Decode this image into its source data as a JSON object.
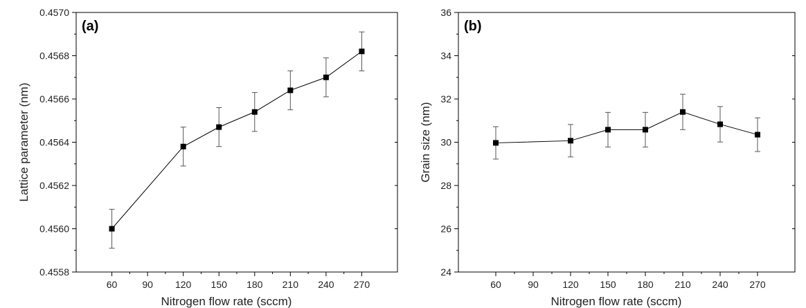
{
  "chart_data": [
    {
      "type": "line",
      "panel_label": "(a)",
      "xlabel": "Nitrogen flow rate (sccm)",
      "ylabel": "Lattice parameter (nm)",
      "xlim": [
        30,
        300
      ],
      "ylim": [
        0.4558,
        0.457
      ],
      "xticks": [
        60,
        90,
        120,
        150,
        180,
        210,
        240,
        270
      ],
      "yticks": [
        0.4558,
        0.456,
        0.4562,
        0.4564,
        0.4566,
        0.4568,
        0.457
      ],
      "xtick_labels": [
        "60",
        "90",
        "120",
        "150",
        "180",
        "210",
        "240",
        "270"
      ],
      "ytick_labels": [
        "0.4558",
        "0.4560",
        "0.4562",
        "0.4564",
        "0.4566",
        "0.4568",
        "0.4570"
      ],
      "series": [
        {
          "x": [
            60,
            120,
            150,
            180,
            210,
            240,
            270
          ],
          "y": [
            0.456,
            0.45638,
            0.45647,
            0.45654,
            0.45664,
            0.4567,
            0.45682
          ],
          "err": [
            9e-05,
            9e-05,
            9e-05,
            9e-05,
            9e-05,
            9e-05,
            9e-05
          ]
        }
      ],
      "grid": false,
      "marker": "square",
      "color": "#000000"
    },
    {
      "type": "line",
      "panel_label": "(b)",
      "xlabel": "Nitrogen flow rate (sccm)",
      "ylabel": "Grain size (nm)",
      "xlim": [
        30,
        300
      ],
      "ylim": [
        24,
        36
      ],
      "xticks": [
        60,
        90,
        120,
        150,
        180,
        210,
        240,
        270
      ],
      "yticks": [
        24,
        26,
        28,
        30,
        32,
        34,
        36
      ],
      "xtick_labels": [
        "60",
        "90",
        "120",
        "150",
        "180",
        "210",
        "240",
        "270"
      ],
      "ytick_labels": [
        "24",
        "26",
        "28",
        "30",
        "32",
        "34",
        "36"
      ],
      "series": [
        {
          "x": [
            60,
            120,
            150,
            180,
            210,
            240,
            270
          ],
          "y": [
            29.97,
            30.07,
            30.58,
            30.58,
            31.4,
            30.83,
            30.35
          ],
          "err": [
            0.75,
            0.75,
            0.8,
            0.8,
            0.82,
            0.82,
            0.78
          ]
        }
      ],
      "grid": false,
      "marker": "square",
      "color": "#000000"
    }
  ]
}
